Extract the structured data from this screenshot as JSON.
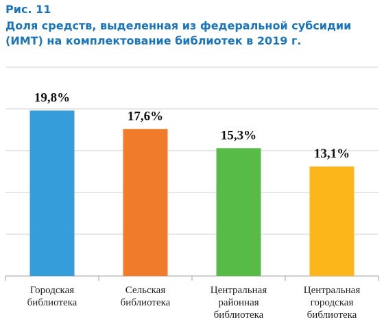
{
  "chart_data": {
    "type": "bar",
    "figure_label": "Рис. 11",
    "title": "Доля средств, выделенная из федеральной субсидии\n(ИМТ) на комплектование библиотек в 2019 г.",
    "categories": [
      "Городская\nбиблиотека",
      "Сельская\nбиблиотека",
      "Центральная\nрайонная\nбиблиотека",
      "Центральная\nгородская\nбиблиотека"
    ],
    "values": [
      19.8,
      17.6,
      15.3,
      13.1
    ],
    "value_labels": [
      "19,8%",
      "17,6%",
      "15,3%",
      "13,1%"
    ],
    "colors": [
      "#359ed8",
      "#f07b2a",
      "#56bb47",
      "#fcb619"
    ],
    "ylim": [
      0,
      25
    ],
    "yticks": [
      0,
      5,
      10,
      15,
      20,
      25
    ],
    "grid": true
  }
}
